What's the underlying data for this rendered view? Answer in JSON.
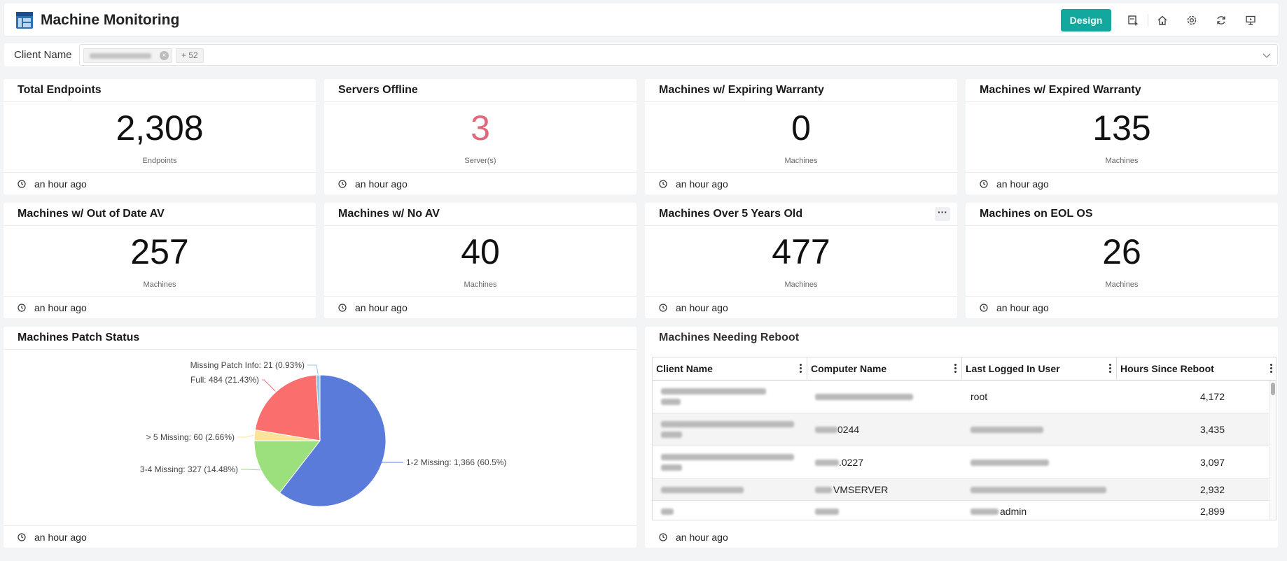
{
  "header": {
    "title": "Machine Monitoring",
    "design_label": "Design",
    "icons": [
      "export-icon",
      "home-icon",
      "settings-icon",
      "refresh-icon",
      "present-icon"
    ]
  },
  "filter": {
    "label": "Client Name",
    "more_label": "+ 52"
  },
  "kpis": [
    {
      "title": "Total Endpoints",
      "value": "2,308",
      "unit": "Endpoints",
      "footer": "an hour ago"
    },
    {
      "title": "Servers Offline",
      "value": "3",
      "unit": "Server(s)",
      "footer": "an hour ago",
      "color": "#e0677a"
    },
    {
      "title": "Machines w/ Expiring Warranty",
      "value": "0",
      "unit": "Machines",
      "footer": "an hour ago"
    },
    {
      "title": "Machines w/ Expired Warranty",
      "value": "135",
      "unit": "Machines",
      "footer": "an hour ago"
    },
    {
      "title": "Machines w/ Out of Date AV",
      "value": "257",
      "unit": "Machines",
      "footer": "an hour ago"
    },
    {
      "title": "Machines w/ No AV",
      "value": "40",
      "unit": "Machines",
      "footer": "an hour ago"
    },
    {
      "title": "Machines Over 5 Years Old",
      "value": "477",
      "unit": "Machines",
      "footer": "an hour ago"
    },
    {
      "title": "Machines on EOL OS",
      "value": "26",
      "unit": "Machines",
      "footer": "an hour ago"
    }
  ],
  "patch": {
    "title": "Machines Patch Status",
    "footer": "an hour ago"
  },
  "chart_data": {
    "type": "pie",
    "slices": [
      {
        "label": "1-2 Missing: 1,366 (60.5%)",
        "name": "1-2 Missing",
        "value": 1366,
        "color": "#5b7bdb"
      },
      {
        "label": "3-4 Missing: 327 (14.48%)",
        "name": "3-4 Missing",
        "value": 327,
        "color": "#9be07d"
      },
      {
        "label": "> 5 Missing: 60 (2.66%)",
        "name": "> 5 Missing",
        "value": 60,
        "color": "#fbe39a"
      },
      {
        "label": "Full: 484 (21.43%)",
        "name": "Full",
        "value": 484,
        "color": "#fb6e6e"
      },
      {
        "label": "Missing Patch Info: 21 (0.93%)",
        "name": "Missing Patch Info",
        "value": 21,
        "color": "#8ec6e6"
      }
    ]
  },
  "reboot": {
    "title": "Machines Needing Reboot",
    "footer": "an hour ago",
    "columns": [
      "Client Name",
      "Computer Name",
      "Last Logged In User",
      "Hours Since Reboot"
    ],
    "rows": [
      {
        "computer": "",
        "user": "root",
        "hours": "4,172"
      },
      {
        "computer": "0244",
        "user": "",
        "hours": "3,435"
      },
      {
        "computer": ".0227",
        "user": "",
        "hours": "3,097"
      },
      {
        "computer": "VMSERVER",
        "user": "",
        "hours": "2,932"
      },
      {
        "computer": "",
        "user": "admin",
        "hours": "2,899"
      }
    ]
  }
}
